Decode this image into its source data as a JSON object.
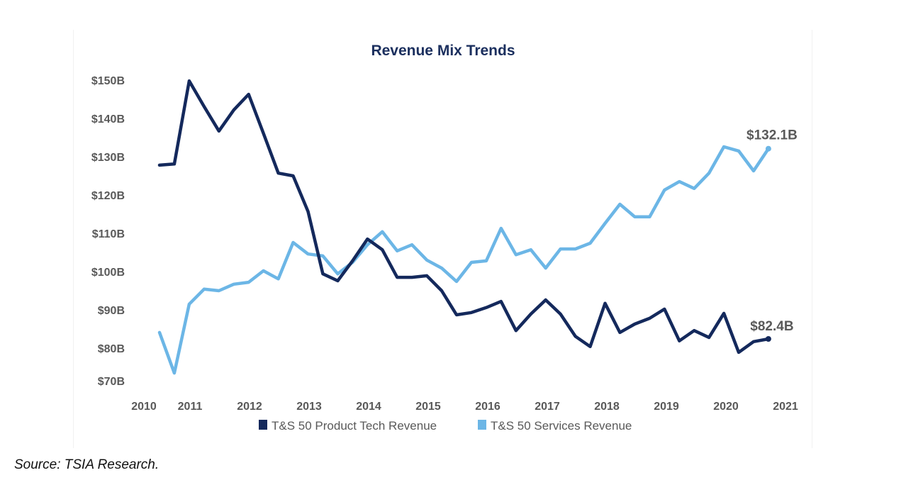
{
  "source_note": "Source: TSIA Research.",
  "chart_data": {
    "type": "line",
    "title": "Revenue Mix Trends",
    "xlabel": "",
    "ylabel": "",
    "x_tick_labels": [
      "2010",
      "2011",
      "2012",
      "2013",
      "2014",
      "2015",
      "2016",
      "2017",
      "2018",
      "2019",
      "2020",
      "2021"
    ],
    "y_tick_values": [
      70,
      80,
      90,
      100,
      110,
      120,
      130,
      140,
      150
    ],
    "y_tick_labels": [
      "$70B",
      "$80B",
      "$90B",
      "$100B",
      "$110B",
      "$120B",
      "$130B",
      "$140B",
      "$150B"
    ],
    "ylim": [
      70,
      150
    ],
    "x_start": 2010.75,
    "x_step": 0.25,
    "grid": false,
    "legend_position": "bottom",
    "series": [
      {
        "name": "T&S 50 Product Tech Revenue",
        "color": "#14295c",
        "values": [
          127.8,
          128.1,
          149.8,
          143.1,
          136.7,
          142.2,
          146.3,
          136.1,
          125.7,
          125.0,
          115.7,
          99.4,
          97.6,
          102.8,
          108.5,
          105.7,
          98.5,
          98.5,
          98.9,
          95.0,
          88.7,
          89.3,
          90.6,
          92.2,
          84.6,
          88.9,
          92.6,
          88.9,
          83.1,
          80.4,
          91.7,
          84.1,
          86.3,
          87.8,
          90.2,
          81.9,
          84.6,
          82.8,
          89.1,
          78.9,
          81.7,
          82.4
        ],
        "end_label": "$82.4B"
      },
      {
        "name": "T&S 50 Services Revenue",
        "color": "#6cb6e6",
        "values": [
          84.1,
          73.5,
          91.5,
          95.4,
          95.0,
          96.7,
          97.2,
          100.2,
          98.1,
          107.6,
          104.6,
          104.1,
          99.4,
          102.4,
          107.0,
          110.4,
          105.4,
          107.0,
          103.0,
          100.9,
          97.4,
          102.4,
          102.8,
          111.3,
          104.4,
          105.7,
          100.9,
          105.9,
          105.9,
          107.4,
          112.6,
          117.6,
          114.3,
          114.3,
          121.3,
          123.5,
          121.7,
          125.7,
          132.6,
          131.5,
          126.3,
          132.1
        ],
        "end_label": "$132.1B"
      }
    ]
  }
}
